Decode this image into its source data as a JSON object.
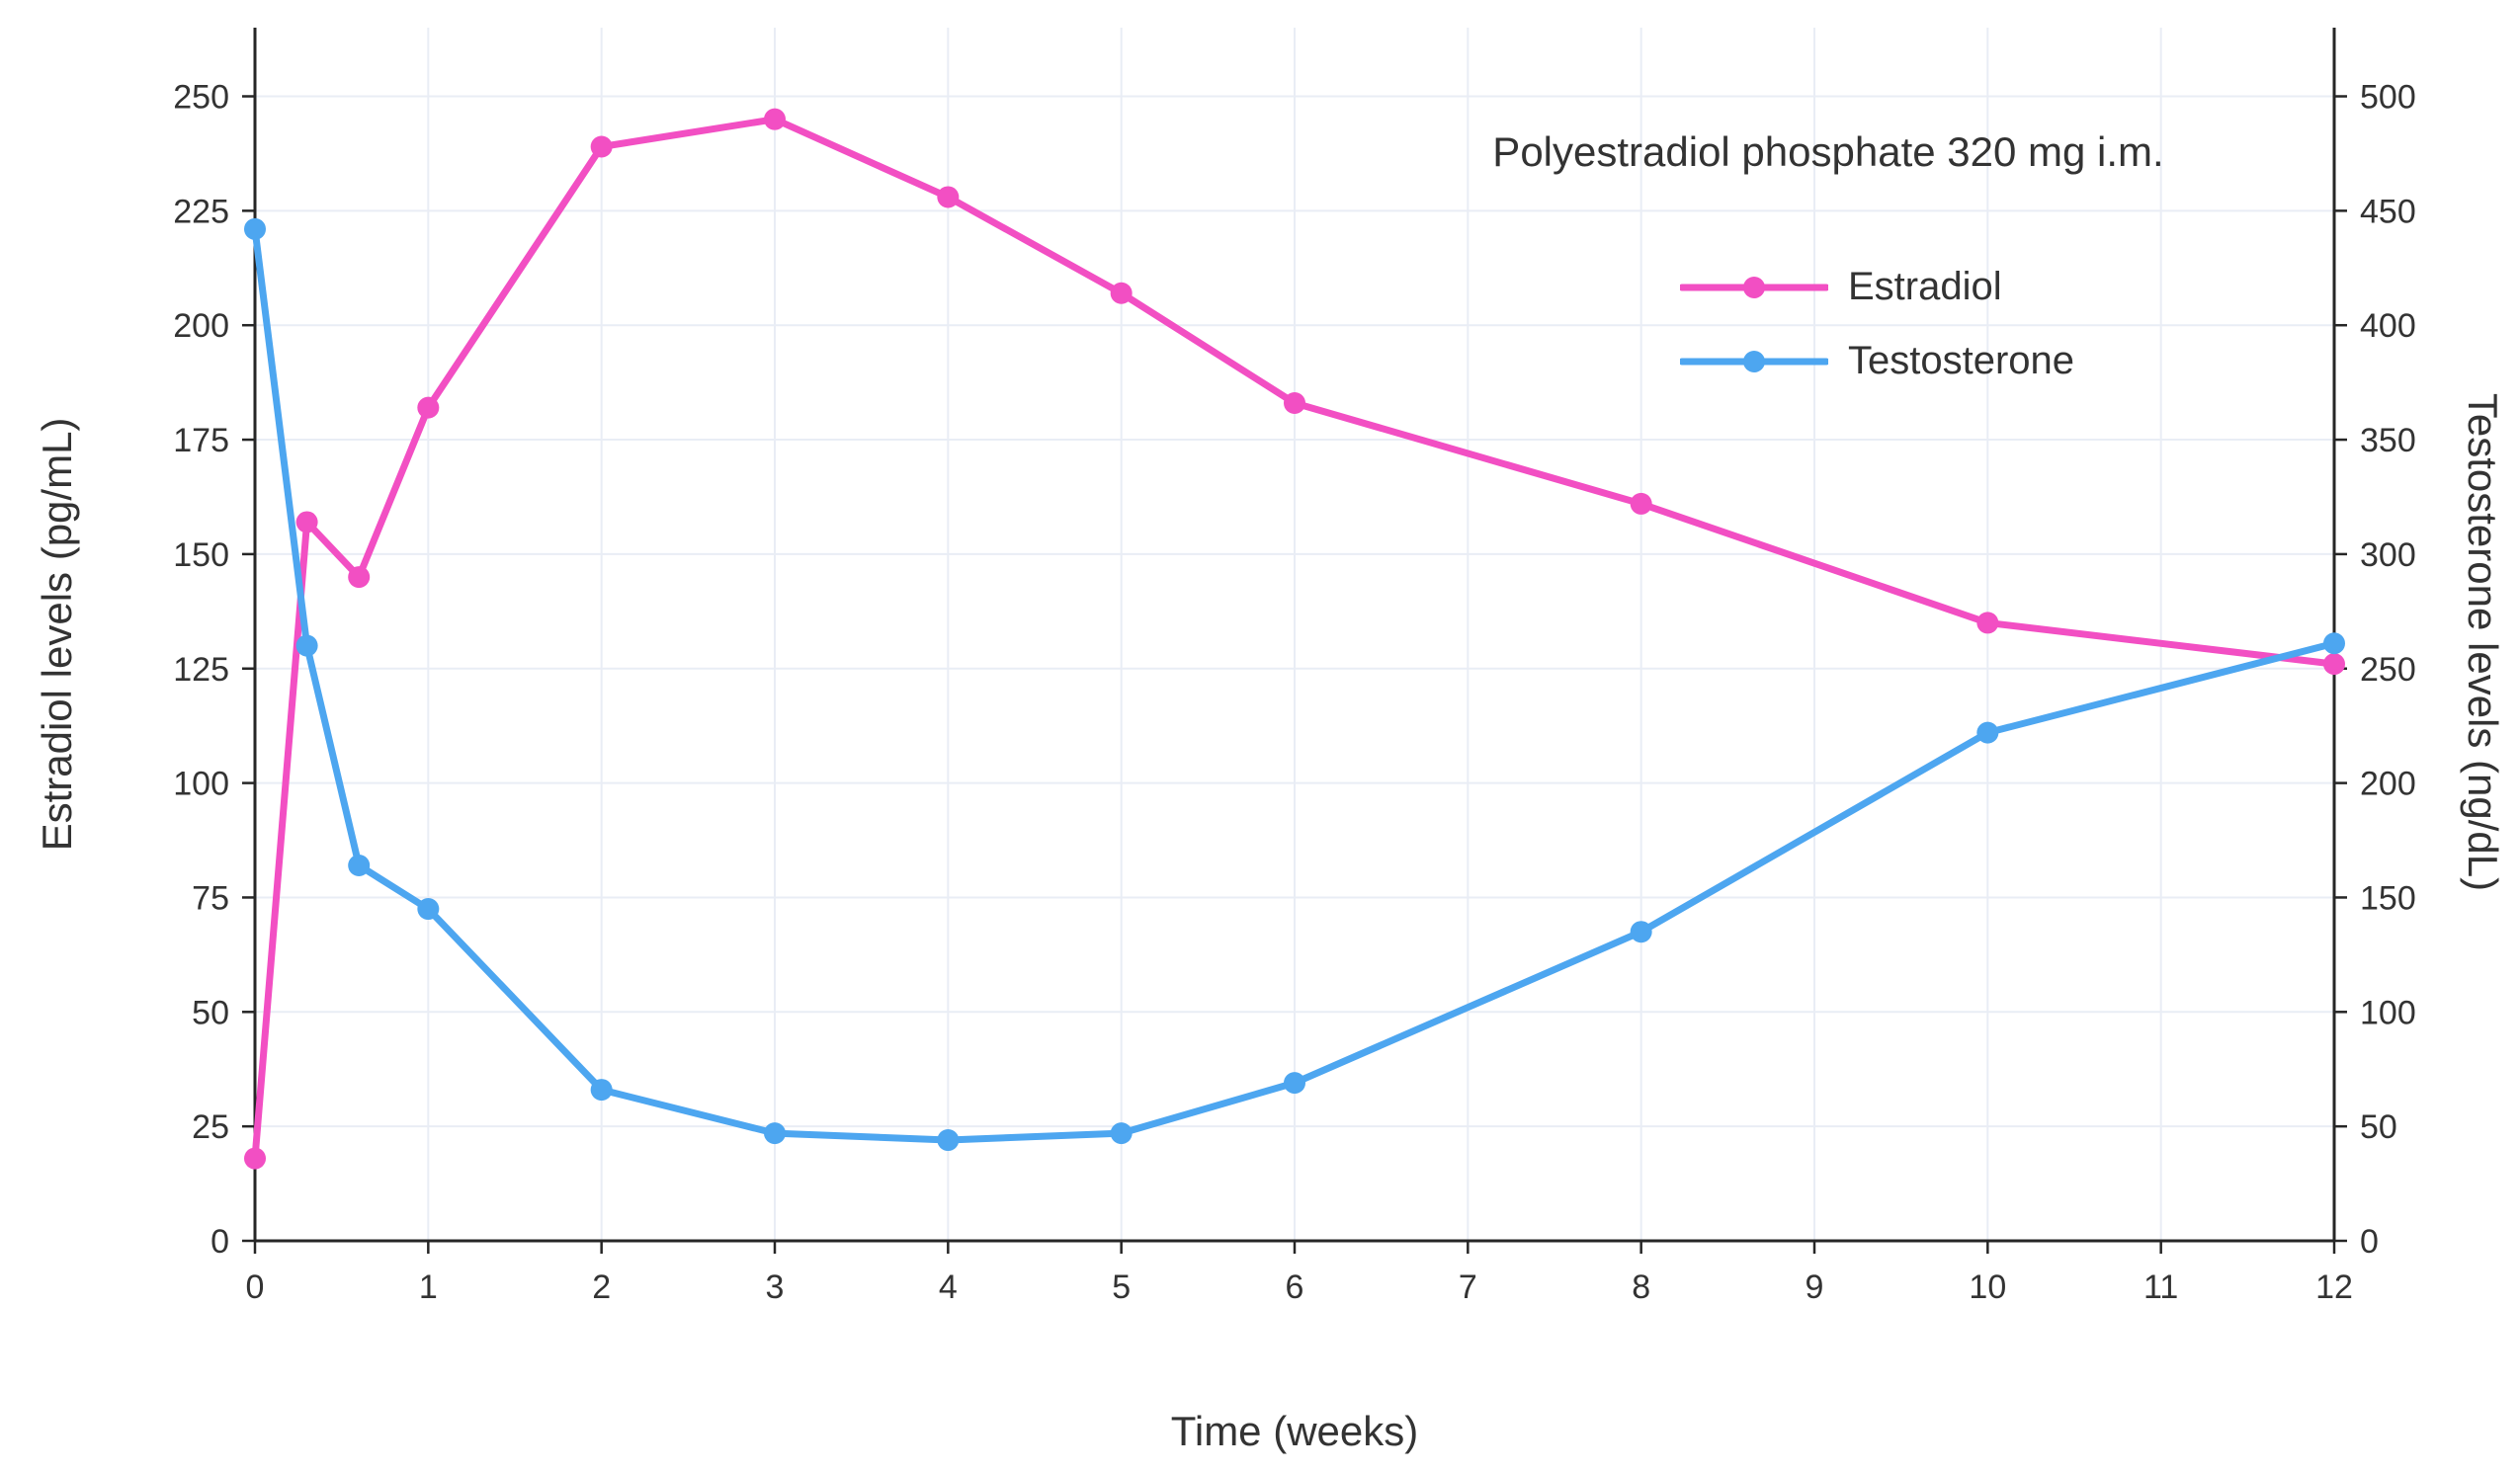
{
  "chart_data": {
    "type": "line",
    "annotation": "Polyestradiol phosphate 320 mg i.m.",
    "xlabel": "Time (weeks)",
    "ylabel_left": "Estradiol levels (pg/mL)",
    "ylabel_right": "Testosterone levels (ng/dL)",
    "x_ticks": [
      0,
      1,
      2,
      3,
      4,
      5,
      6,
      7,
      8,
      9,
      10,
      11,
      12
    ],
    "y_left_ticks": [
      0,
      25,
      50,
      75,
      100,
      125,
      150,
      175,
      200,
      225,
      250
    ],
    "y_right_ticks": [
      0,
      50,
      100,
      150,
      200,
      250,
      300,
      350,
      400,
      450,
      500
    ],
    "xlim": [
      0,
      12
    ],
    "ylim_left": [
      0,
      265
    ],
    "ylim_right": [
      0,
      530
    ],
    "grid": true,
    "legend_position": "top-right",
    "colors": {
      "grid": "#E9EDF5",
      "axis": "#262626",
      "text": "#333333"
    },
    "series": [
      {
        "name": "Estradiol",
        "axis": "left",
        "color": "#F24FC3",
        "x": [
          0,
          0.3,
          0.6,
          1,
          2,
          3,
          4,
          5,
          6,
          8,
          10,
          12
        ],
        "y": [
          18,
          157,
          145,
          182,
          239,
          245,
          228,
          207,
          183,
          161,
          135,
          126
        ]
      },
      {
        "name": "Testosterone",
        "axis": "right",
        "color": "#4DA6F0",
        "x": [
          0,
          0.3,
          0.6,
          1,
          2,
          3,
          4,
          5,
          6,
          8,
          10,
          12
        ],
        "y": [
          442,
          260,
          164,
          145,
          66,
          47,
          44,
          47,
          69,
          135,
          222,
          261
        ]
      }
    ]
  }
}
